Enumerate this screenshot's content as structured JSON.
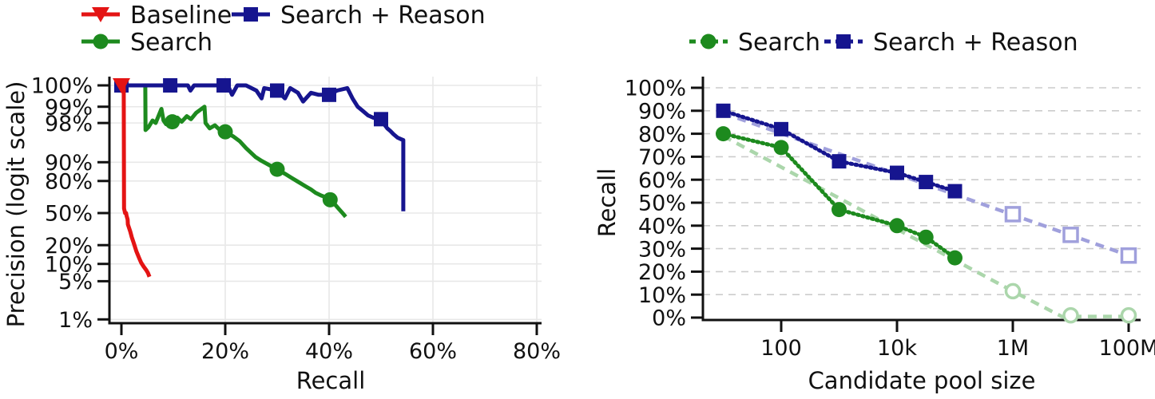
{
  "figure": {
    "background": "#ffffff"
  },
  "colors": {
    "red": "#e41414",
    "green": "#1d8a1e",
    "navy": "#16158f",
    "light_green": "#abd6ab",
    "light_blue": "#a0a0dc",
    "grid": "#e8e8e8",
    "grid_dashed": "#cccccc",
    "axis": "#111111",
    "text": "#111111"
  },
  "chart_data": [
    {
      "id": "pr-curve",
      "type": "line",
      "title": "",
      "xlabel": "Recall",
      "ylabel": "Precision (logit scale)",
      "x_scale": "linear",
      "y_scale": "logit",
      "xlim": [
        0,
        80
      ],
      "grid": "solid",
      "legend_position": "top-left",
      "x_ticks": [
        {
          "value": 0,
          "label": "0%"
        },
        {
          "value": 20,
          "label": "20%"
        },
        {
          "value": 40,
          "label": "40%"
        },
        {
          "value": 60,
          "label": "60%"
        },
        {
          "value": 80,
          "label": "80%"
        }
      ],
      "y_ticks": [
        {
          "value": 100,
          "label": "100%"
        },
        {
          "value": 99,
          "label": "99%"
        },
        {
          "value": 98,
          "label": "98%"
        },
        {
          "value": 90,
          "label": "90%"
        },
        {
          "value": 80,
          "label": "80%"
        },
        {
          "value": 50,
          "label": "50%"
        },
        {
          "value": 20,
          "label": "20%"
        },
        {
          "value": 10,
          "label": "10%"
        },
        {
          "value": 5,
          "label": "5%"
        },
        {
          "value": 1,
          "label": "1%"
        }
      ],
      "legend_order": [
        "Baseline",
        "Search + Reason",
        "Search"
      ],
      "series": [
        {
          "name": "Search",
          "color_key": "green",
          "marker": "circle",
          "line_style": "solid",
          "points": [
            [
              0,
              99.8
            ],
            [
              4.6,
              99.8
            ],
            [
              4.65,
              97.3
            ],
            [
              5.2,
              97.6
            ],
            [
              6.0,
              98.2
            ],
            [
              6.6,
              98.0
            ],
            [
              7.7,
              98.9
            ],
            [
              8.1,
              98.2
            ],
            [
              8.6,
              97.9
            ],
            [
              9.8,
              98.1
            ],
            [
              10.8,
              98.4
            ],
            [
              11.6,
              98.1
            ],
            [
              12.6,
              98.5
            ],
            [
              13.4,
              98.3
            ],
            [
              14.4,
              98.7
            ],
            [
              16.0,
              99.0
            ],
            [
              16.2,
              98.0
            ],
            [
              17.0,
              97.5
            ],
            [
              18.0,
              97.8
            ],
            [
              18.8,
              97.4
            ],
            [
              20.0,
              97.1
            ],
            [
              21.5,
              96.5
            ],
            [
              22.8,
              95.7
            ],
            [
              24.0,
              94.3
            ],
            [
              25.8,
              91.9
            ],
            [
              27.0,
              90.5
            ],
            [
              28.5,
              88.8
            ],
            [
              30.0,
              86.9
            ],
            [
              31.5,
              84.5
            ],
            [
              32.8,
              82.0
            ],
            [
              34.0,
              79.5
            ],
            [
              35.5,
              76.0
            ],
            [
              36.5,
              73.5
            ],
            [
              37.4,
              70.6
            ],
            [
              38.5,
              68.0
            ],
            [
              39.3,
              66.5
            ],
            [
              40.2,
              64.0
            ],
            [
              41.0,
              60.0
            ],
            [
              41.8,
              55.0
            ],
            [
              42.5,
              50.5
            ],
            [
              43.2,
              46.0
            ]
          ],
          "marker_points": [
            [
              9.8,
              98.1
            ],
            [
              20,
              97.1
            ],
            [
              30,
              86.9
            ],
            [
              40.2,
              64
            ]
          ]
        },
        {
          "name": "Search + Reason",
          "color_key": "navy",
          "marker": "square",
          "line_style": "solid",
          "points": [
            [
              0,
              99.8
            ],
            [
              9.4,
              99.8
            ],
            [
              12.8,
              99.8
            ],
            [
              13.3,
              99.5
            ],
            [
              14.0,
              99.75
            ],
            [
              19.7,
              99.75
            ],
            [
              20.5,
              99.7
            ],
            [
              21.3,
              99.4
            ],
            [
              22.3,
              99.7
            ],
            [
              24,
              99.65
            ],
            [
              26,
              99.5
            ],
            [
              27,
              99.3
            ],
            [
              27.5,
              99.55
            ],
            [
              30,
              99.5
            ],
            [
              31.5,
              99.3
            ],
            [
              32.5,
              99.55
            ],
            [
              34,
              99.45
            ],
            [
              35,
              99.2
            ],
            [
              36.5,
              99.45
            ],
            [
              38,
              99.4
            ],
            [
              40,
              99.4
            ],
            [
              41.5,
              99.5
            ],
            [
              43.5,
              99.55
            ],
            [
              44.5,
              99.3
            ],
            [
              45.5,
              99.0
            ],
            [
              46.5,
              98.8
            ],
            [
              47.5,
              98.55
            ],
            [
              48.5,
              98.4
            ],
            [
              50,
              98.3
            ],
            [
              50.6,
              97.9
            ],
            [
              51.2,
              97.5
            ],
            [
              51.8,
              97.2
            ],
            [
              52.4,
              96.8
            ],
            [
              53.2,
              96.3
            ],
            [
              54.0,
              96.0
            ],
            [
              54.3,
              95.9
            ],
            [
              54.3,
              52
            ]
          ],
          "marker_points": [
            [
              0,
              99.8
            ],
            [
              9.4,
              99.8
            ],
            [
              19.7,
              99.75
            ],
            [
              30,
              99.5
            ],
            [
              40,
              99.4
            ],
            [
              50,
              98.3
            ]
          ]
        },
        {
          "name": "Baseline",
          "color_key": "red",
          "marker": "triangle-down",
          "line_style": "solid",
          "points": [
            [
              0,
              99.8
            ],
            [
              0.45,
              99.8
            ],
            [
              0.5,
              55
            ],
            [
              0.7,
              50
            ],
            [
              0.9,
              50
            ],
            [
              1.0,
              47
            ],
            [
              1.2,
              43
            ],
            [
              1.25,
              38
            ],
            [
              1.7,
              31
            ],
            [
              2.0,
              26
            ],
            [
              2.3,
              22.5
            ],
            [
              2.5,
              20
            ],
            [
              2.9,
              16
            ],
            [
              3.1,
              14.5
            ],
            [
              3.5,
              12
            ],
            [
              3.8,
              10.5
            ],
            [
              4.3,
              9
            ],
            [
              4.8,
              7.8
            ],
            [
              5.1,
              7
            ],
            [
              5.4,
              6
            ]
          ],
          "marker_points": [
            [
              0,
              100
            ]
          ]
        }
      ]
    },
    {
      "id": "recall-vs-pool",
      "type": "line",
      "title": "",
      "xlabel": "Candidate pool size",
      "ylabel": "Recall",
      "x_scale": "log",
      "y_scale": "linear",
      "ylim": [
        0,
        100
      ],
      "grid": "dashed",
      "legend_position": "top",
      "x_ticks": [
        {
          "value": 100,
          "label": "100"
        },
        {
          "value": 10000,
          "label": "10k"
        },
        {
          "value": 1000000,
          "label": "1M"
        },
        {
          "value": 100000000,
          "label": "100M"
        }
      ],
      "y_ticks": [
        {
          "value": 0,
          "label": "0%"
        },
        {
          "value": 10,
          "label": "10%"
        },
        {
          "value": 20,
          "label": "20%"
        },
        {
          "value": 30,
          "label": "30%"
        },
        {
          "value": 40,
          "label": "40%"
        },
        {
          "value": 50,
          "label": "50%"
        },
        {
          "value": 60,
          "label": "60%"
        },
        {
          "value": 70,
          "label": "70%"
        },
        {
          "value": 80,
          "label": "80%"
        },
        {
          "value": 90,
          "label": "90%"
        },
        {
          "value": 100,
          "label": "100%"
        }
      ],
      "legend_order": [
        "Search",
        "Search + Reason"
      ],
      "series": [
        {
          "name": "Search extrapolated",
          "color_key": "light_green",
          "marker": "circle-open",
          "line_style": "dashed",
          "extrapolated": true,
          "points": [
            [
              10,
              79
            ],
            [
              1000000,
              11.5
            ],
            [
              7000000,
              0.5
            ],
            [
              100000000,
              0.5
            ]
          ],
          "marker_points": [
            [
              1000000,
              11.5
            ],
            [
              10000000,
              1
            ],
            [
              100000000,
              1
            ]
          ]
        },
        {
          "name": "Search + Reason extrapolated",
          "color_key": "light_blue",
          "marker": "square-open",
          "line_style": "dashed",
          "extrapolated": true,
          "points": [
            [
              10,
              89
            ],
            [
              100000000,
              27
            ]
          ],
          "marker_points": [
            [
              1000000,
              45
            ],
            [
              10000000,
              36
            ],
            [
              100000000,
              27
            ]
          ]
        },
        {
          "name": "Search",
          "color_key": "green",
          "marker": "circle",
          "line_style": "dotted",
          "points": [
            [
              10,
              80
            ],
            [
              100,
              74
            ],
            [
              1000,
              47
            ],
            [
              10000,
              40
            ],
            [
              31600,
              35
            ],
            [
              100000,
              26
            ]
          ],
          "marker_points": [
            [
              10,
              80
            ],
            [
              100,
              74
            ],
            [
              1000,
              47
            ],
            [
              10000,
              40
            ],
            [
              31600,
              35
            ],
            [
              100000,
              26
            ]
          ]
        },
        {
          "name": "Search + Reason",
          "color_key": "navy",
          "marker": "square",
          "line_style": "dotted",
          "points": [
            [
              10,
              90
            ],
            [
              100,
              82
            ],
            [
              1000,
              68
            ],
            [
              10000,
              63
            ],
            [
              31600,
              59
            ],
            [
              100000,
              55
            ]
          ],
          "marker_points": [
            [
              10,
              90
            ],
            [
              100,
              82
            ],
            [
              1000,
              68
            ],
            [
              10000,
              63
            ],
            [
              31600,
              59
            ],
            [
              100000,
              55
            ]
          ]
        }
      ]
    }
  ]
}
